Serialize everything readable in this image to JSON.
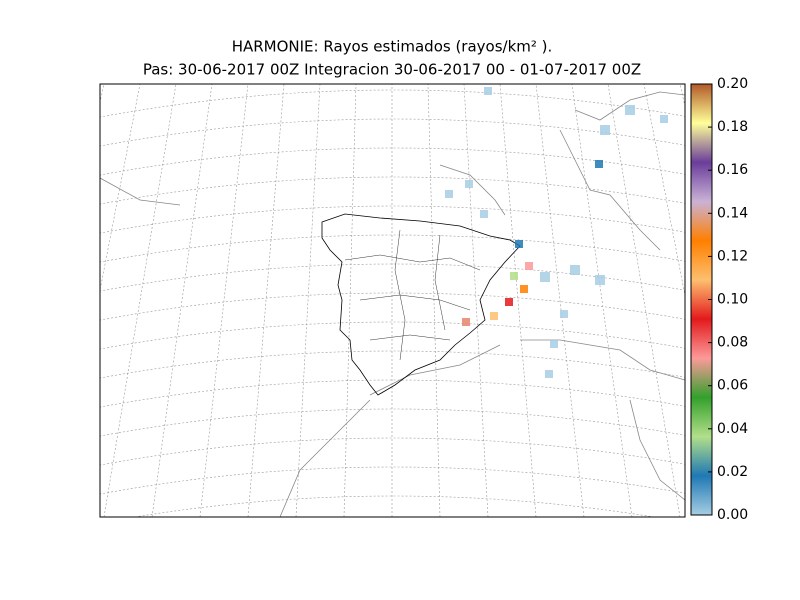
{
  "title": "HARMONIE: Rayos estimados  (rayos/km² ).",
  "subtitle": "Pas: 30-06-2017 00Z Integracion 30-06-2017 00 - 01-07-2017 00Z",
  "colorbar": {
    "lim": [
      0,
      0.2
    ],
    "colors": [
      "#a6cee3",
      "#1f78b4",
      "#b2df8a",
      "#33a02c",
      "#fb9a99",
      "#e31a1c",
      "#fdbf6f",
      "#ff7f00",
      "#cab2d6",
      "#6a3d9a",
      "#ffff99",
      "#b15928"
    ],
    "ticks": [
      {
        "value": 0,
        "label": "0.00"
      },
      {
        "value": 0.02,
        "label": "0.02"
      },
      {
        "value": 0.04,
        "label": "0.04"
      },
      {
        "value": 0.06,
        "label": "0.06"
      },
      {
        "value": 0.08,
        "label": "0.08"
      },
      {
        "value": 0.1,
        "label": "0.10"
      },
      {
        "value": 0.12,
        "label": "0.12"
      },
      {
        "value": 0.14,
        "label": "0.14"
      },
      {
        "value": 0.16,
        "label": "0.16"
      },
      {
        "value": 0.18,
        "label": "0.18"
      },
      {
        "value": 0.2,
        "label": "0.20"
      }
    ]
  }
}
